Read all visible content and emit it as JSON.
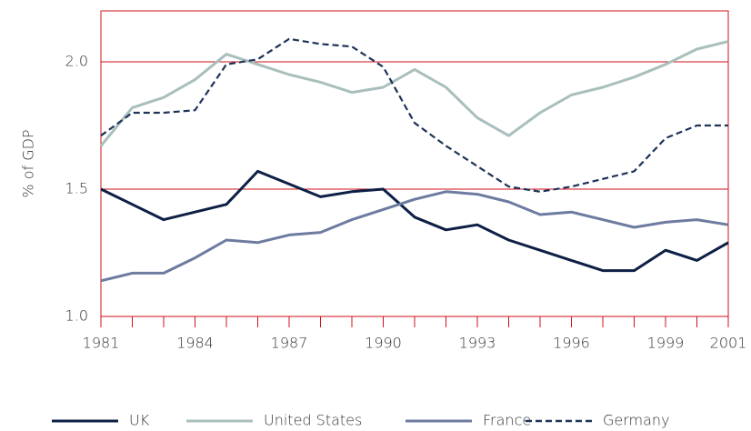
{
  "chart_data": {
    "type": "line",
    "y_label": "% of GDP",
    "x": [
      1981,
      1982,
      1983,
      1984,
      1985,
      1986,
      1987,
      1988,
      1989,
      1990,
      1991,
      1992,
      1993,
      1994,
      1995,
      1996,
      1997,
      1998,
      1999,
      2000,
      2001
    ],
    "series": [
      {
        "name": "UK",
        "color": "#0d1f45",
        "dashed": false,
        "values": [
          1.5,
          1.44,
          1.38,
          1.41,
          1.44,
          1.57,
          1.52,
          1.47,
          1.49,
          1.5,
          1.39,
          1.34,
          1.36,
          1.3,
          1.26,
          1.22,
          1.18,
          1.18,
          1.26,
          1.22,
          1.29
        ]
      },
      {
        "name": "United States",
        "color": "#a9bfbd",
        "dashed": false,
        "values": [
          1.67,
          1.82,
          1.86,
          1.93,
          2.03,
          1.99,
          1.95,
          1.92,
          1.88,
          1.9,
          1.97,
          1.9,
          1.78,
          1.71,
          1.8,
          1.87,
          1.9,
          1.94,
          1.99,
          2.05,
          2.08
        ]
      },
      {
        "name": "France",
        "color": "#6e7ba0",
        "dashed": false,
        "values": [
          1.14,
          1.17,
          1.17,
          1.23,
          1.3,
          1.29,
          1.32,
          1.33,
          1.38,
          1.42,
          1.46,
          1.49,
          1.48,
          1.45,
          1.4,
          1.41,
          1.38,
          1.35,
          1.37,
          1.38,
          1.36
        ]
      },
      {
        "name": "Germany",
        "color": "#1e3358",
        "dashed": true,
        "values": [
          1.71,
          1.8,
          1.8,
          1.81,
          1.99,
          2.01,
          2.09,
          2.07,
          2.06,
          1.98,
          1.76,
          1.67,
          1.59,
          1.51,
          1.49,
          1.51,
          1.54,
          1.57,
          1.7,
          1.75,
          1.75
        ]
      }
    ],
    "xlim": [
      1981,
      2001
    ],
    "xticks": [
      1981,
      1984,
      1987,
      1990,
      1993,
      1996,
      1999,
      2001
    ],
    "ylim": [
      1.0,
      2.2
    ],
    "yticks": [
      {
        "value": 1,
        "label": "1.0"
      },
      {
        "value": 1.5,
        "label": "1.5"
      },
      {
        "value": 2,
        "label": "2.0"
      }
    ],
    "grid": true,
    "grid_color": "#d0101a",
    "legend": "bottom"
  }
}
